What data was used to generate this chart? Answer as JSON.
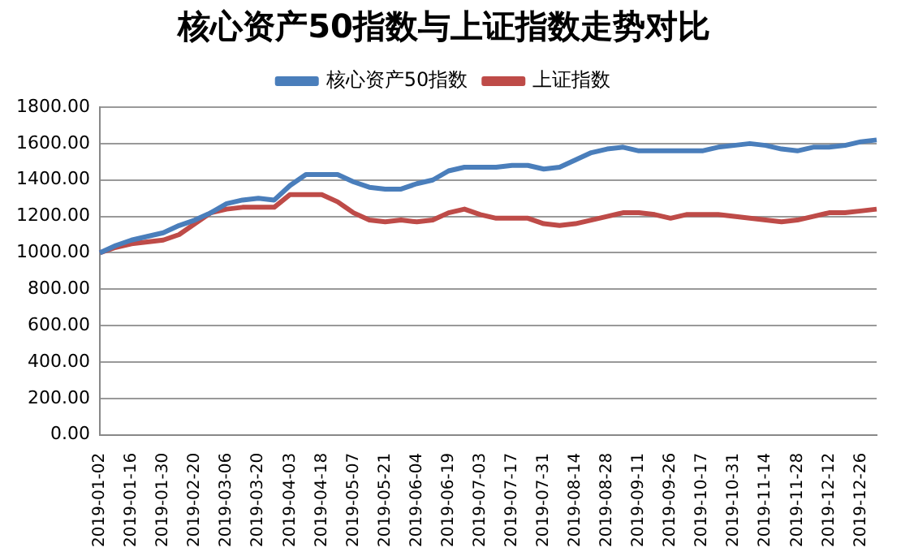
{
  "chart_data": {
    "type": "line",
    "title": "核心资产50指数与上证指数走势对比",
    "categories": [
      "2019-01-02",
      null,
      "2019-01-16",
      null,
      "2019-01-30",
      null,
      "2019-02-20",
      null,
      "2019-03-06",
      null,
      "2019-03-20",
      null,
      "2019-04-03",
      null,
      "2019-04-18",
      null,
      "2019-05-07",
      null,
      "2019-05-21",
      null,
      "2019-06-04",
      null,
      "2019-06-19",
      null,
      "2019-07-03",
      null,
      "2019-07-17",
      null,
      "2019-07-31",
      null,
      "2019-08-14",
      null,
      "2019-08-28",
      null,
      "2019-09-11",
      null,
      "2019-09-26",
      null,
      "2019-10-17",
      null,
      "2019-10-31",
      null,
      "2019-11-14",
      null,
      "2019-11-28",
      null,
      "2019-12-12",
      null,
      "2019-12-26",
      null
    ],
    "series": [
      {
        "name": "核心资产50指数",
        "color": "#4a7ebb",
        "values": [
          1000,
          1040,
          1070,
          1090,
          1110,
          1150,
          1180,
          1220,
          1270,
          1290,
          1300,
          1290,
          1370,
          1430,
          1430,
          1430,
          1390,
          1360,
          1350,
          1350,
          1380,
          1400,
          1450,
          1470,
          1470,
          1470,
          1480,
          1480,
          1460,
          1470,
          1510,
          1550,
          1570,
          1580,
          1560,
          1560,
          1560,
          1560,
          1560,
          1580,
          1590,
          1600,
          1590,
          1570,
          1560,
          1580,
          1580,
          1590,
          1610,
          1620
        ]
      },
      {
        "name": "上证指数",
        "color": "#be4b48",
        "values": [
          1000,
          1030,
          1050,
          1060,
          1070,
          1100,
          1160,
          1220,
          1240,
          1250,
          1250,
          1250,
          1320,
          1320,
          1320,
          1280,
          1220,
          1180,
          1170,
          1180,
          1170,
          1180,
          1220,
          1240,
          1210,
          1190,
          1190,
          1190,
          1160,
          1150,
          1160,
          1180,
          1200,
          1220,
          1220,
          1210,
          1190,
          1210,
          1210,
          1210,
          1200,
          1190,
          1180,
          1170,
          1180,
          1200,
          1220,
          1220,
          1230,
          1240
        ]
      }
    ],
    "ylim": [
      0,
      1800
    ],
    "yticks": [
      {
        "value": 0,
        "label": "0.00"
      },
      {
        "value": 200,
        "label": "200.00"
      },
      {
        "value": 400,
        "label": "400.00"
      },
      {
        "value": 600,
        "label": "600.00"
      },
      {
        "value": 800,
        "label": "800.00"
      },
      {
        "value": 1000,
        "label": "1000.00"
      },
      {
        "value": 1200,
        "label": "1200.00"
      },
      {
        "value": 1400,
        "label": "1400.00"
      },
      {
        "value": 1600,
        "label": "1600.00"
      },
      {
        "value": 1800,
        "label": "1800.00"
      }
    ],
    "grid": "y",
    "legend": "top",
    "marker": "none",
    "line_style": "solid"
  }
}
